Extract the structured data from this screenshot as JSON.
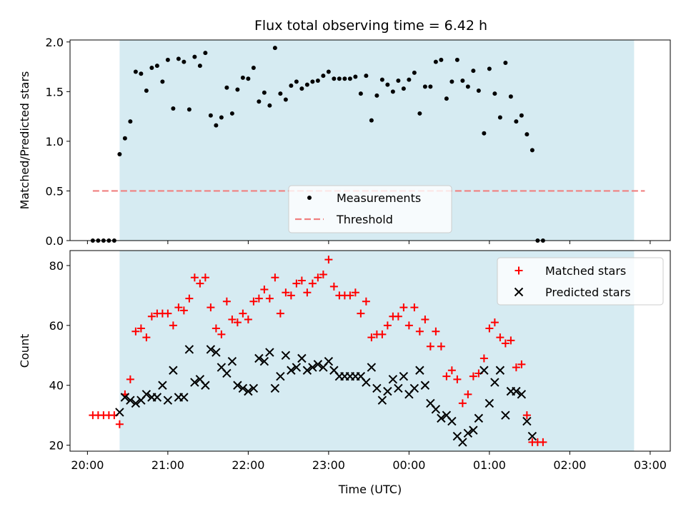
{
  "title": "Flux total observing time = 6.42 h",
  "colors": {
    "shade": "#add8e6",
    "measurement": "#000000",
    "threshold": "#f08080",
    "matched": "#ff0000",
    "predicted": "#000000"
  },
  "chart_data": [
    {
      "type": "scatter",
      "ylabel": "Matched/Predicted stars",
      "xlabel": "",
      "x_ticks": [
        "20:00",
        "21:00",
        "22:00",
        "23:00",
        "00:00",
        "01:00",
        "02:00",
        "03:00"
      ],
      "y_ticks": [
        "0.0",
        "0.5",
        "1.0",
        "1.5",
        "2.0"
      ],
      "xlim": [
        "19:47",
        "03:15"
      ],
      "ylim": [
        0,
        2.02
      ],
      "shaded_span": [
        "20:24",
        "02:48"
      ],
      "threshold": {
        "name": "Threshold",
        "value": 0.5
      },
      "legend": [
        "Measurements",
        "Threshold"
      ],
      "legend_position": "lower center",
      "series": [
        {
          "name": "Measurements",
          "points": [
            [
              "20:04",
              0.0
            ],
            [
              "20:08",
              0.0
            ],
            [
              "20:12",
              0.0
            ],
            [
              "20:16",
              0.0
            ],
            [
              "20:20",
              0.0
            ],
            [
              "20:24",
              0.87
            ],
            [
              "20:28",
              1.03
            ],
            [
              "20:32",
              1.2
            ],
            [
              "20:36",
              1.7
            ],
            [
              "20:40",
              1.68
            ],
            [
              "20:44",
              1.51
            ],
            [
              "20:48",
              1.74
            ],
            [
              "20:52",
              1.76
            ],
            [
              "20:56",
              1.6
            ],
            [
              "21:00",
              1.82
            ],
            [
              "21:04",
              1.33
            ],
            [
              "21:08",
              1.83
            ],
            [
              "21:12",
              1.8
            ],
            [
              "21:16",
              1.32
            ],
            [
              "21:20",
              1.85
            ],
            [
              "21:24",
              1.76
            ],
            [
              "21:28",
              1.89
            ],
            [
              "21:32",
              1.26
            ],
            [
              "21:36",
              1.16
            ],
            [
              "21:40",
              1.24
            ],
            [
              "21:44",
              1.54
            ],
            [
              "21:48",
              1.28
            ],
            [
              "21:52",
              1.52
            ],
            [
              "21:56",
              1.64
            ],
            [
              "22:00",
              1.63
            ],
            [
              "22:04",
              1.74
            ],
            [
              "22:08",
              1.4
            ],
            [
              "22:12",
              1.49
            ],
            [
              "22:16",
              1.36
            ],
            [
              "22:20",
              1.94
            ],
            [
              "22:24",
              1.48
            ],
            [
              "22:28",
              1.42
            ],
            [
              "22:32",
              1.56
            ],
            [
              "22:36",
              1.6
            ],
            [
              "22:40",
              1.53
            ],
            [
              "22:44",
              1.57
            ],
            [
              "22:48",
              1.6
            ],
            [
              "22:52",
              1.61
            ],
            [
              "22:56",
              1.66
            ],
            [
              "23:00",
              1.7
            ],
            [
              "23:04",
              1.63
            ],
            [
              "23:08",
              1.63
            ],
            [
              "23:12",
              1.63
            ],
            [
              "23:16",
              1.63
            ],
            [
              "23:20",
              1.65
            ],
            [
              "23:24",
              1.48
            ],
            [
              "23:28",
              1.66
            ],
            [
              "23:32",
              1.21
            ],
            [
              "23:36",
              1.46
            ],
            [
              "23:40",
              1.62
            ],
            [
              "23:44",
              1.57
            ],
            [
              "23:48",
              1.5
            ],
            [
              "23:52",
              1.61
            ],
            [
              "23:56",
              1.53
            ],
            [
              "00:00",
              1.62
            ],
            [
              "00:04",
              1.69
            ],
            [
              "00:08",
              1.28
            ],
            [
              "00:12",
              1.55
            ],
            [
              "00:16",
              1.55
            ],
            [
              "00:20",
              1.8
            ],
            [
              "00:24",
              1.82
            ],
            [
              "00:28",
              1.43
            ],
            [
              "00:32",
              1.6
            ],
            [
              "00:36",
              1.82
            ],
            [
              "00:40",
              1.61
            ],
            [
              "00:44",
              1.55
            ],
            [
              "00:48",
              1.71
            ],
            [
              "00:52",
              1.51
            ],
            [
              "00:56",
              1.08
            ],
            [
              "01:00",
              1.73
            ],
            [
              "01:04",
              1.48
            ],
            [
              "01:08",
              1.24
            ],
            [
              "01:12",
              1.79
            ],
            [
              "01:16",
              1.45
            ],
            [
              "01:20",
              1.2
            ],
            [
              "01:24",
              1.26
            ],
            [
              "01:28",
              1.07
            ],
            [
              "01:32",
              0.91
            ],
            [
              "01:36",
              0.0
            ],
            [
              "01:40",
              0.0
            ]
          ]
        }
      ]
    },
    {
      "type": "scatter",
      "ylabel": "Count",
      "xlabel": "Time (UTC)",
      "x_ticks": [
        "20:00",
        "21:00",
        "22:00",
        "23:00",
        "00:00",
        "01:00",
        "02:00",
        "03:00"
      ],
      "y_ticks": [
        "20",
        "40",
        "60",
        "80"
      ],
      "xlim": [
        "19:47",
        "03:15"
      ],
      "ylim": [
        18,
        85
      ],
      "shaded_span": [
        "20:24",
        "02:48"
      ],
      "legend": [
        "Matched stars",
        "Predicted stars"
      ],
      "legend_position": "upper right",
      "series": [
        {
          "name": "Matched stars",
          "marker": "+",
          "points": [
            [
              "20:04",
              30
            ],
            [
              "20:08",
              30
            ],
            [
              "20:12",
              30
            ],
            [
              "20:16",
              30
            ],
            [
              "20:20",
              30
            ],
            [
              "20:24",
              27
            ],
            [
              "20:28",
              37
            ],
            [
              "20:32",
              42
            ],
            [
              "20:36",
              58
            ],
            [
              "20:40",
              59
            ],
            [
              "20:44",
              56
            ],
            [
              "20:48",
              63
            ],
            [
              "20:52",
              64
            ],
            [
              "20:56",
              64
            ],
            [
              "21:00",
              64
            ],
            [
              "21:04",
              60
            ],
            [
              "21:08",
              66
            ],
            [
              "21:12",
              65
            ],
            [
              "21:16",
              69
            ],
            [
              "21:20",
              76
            ],
            [
              "21:24",
              74
            ],
            [
              "21:28",
              76
            ],
            [
              "21:32",
              66
            ],
            [
              "21:36",
              59
            ],
            [
              "21:40",
              57
            ],
            [
              "21:44",
              68
            ],
            [
              "21:48",
              62
            ],
            [
              "21:52",
              61
            ],
            [
              "21:56",
              64
            ],
            [
              "22:00",
              62
            ],
            [
              "22:04",
              68
            ],
            [
              "22:08",
              69
            ],
            [
              "22:12",
              72
            ],
            [
              "22:16",
              69
            ],
            [
              "22:20",
              76
            ],
            [
              "22:24",
              64
            ],
            [
              "22:28",
              71
            ],
            [
              "22:32",
              70
            ],
            [
              "22:36",
              74
            ],
            [
              "22:40",
              75
            ],
            [
              "22:44",
              71
            ],
            [
              "22:48",
              74
            ],
            [
              "22:52",
              76
            ],
            [
              "22:56",
              77
            ],
            [
              "23:00",
              82
            ],
            [
              "23:04",
              73
            ],
            [
              "23:08",
              70
            ],
            [
              "23:12",
              70
            ],
            [
              "23:16",
              70
            ],
            [
              "23:20",
              71
            ],
            [
              "23:24",
              64
            ],
            [
              "23:28",
              68
            ],
            [
              "23:32",
              56
            ],
            [
              "23:36",
              57
            ],
            [
              "23:40",
              57
            ],
            [
              "23:44",
              60
            ],
            [
              "23:48",
              63
            ],
            [
              "23:52",
              63
            ],
            [
              "23:56",
              66
            ],
            [
              "00:00",
              60
            ],
            [
              "00:04",
              66
            ],
            [
              "00:08",
              58
            ],
            [
              "00:12",
              62
            ],
            [
              "00:16",
              53
            ],
            [
              "00:20",
              58
            ],
            [
              "00:24",
              53
            ],
            [
              "00:28",
              43
            ],
            [
              "00:32",
              45
            ],
            [
              "00:36",
              42
            ],
            [
              "00:40",
              34
            ],
            [
              "00:44",
              37
            ],
            [
              "00:48",
              43
            ],
            [
              "00:52",
              44
            ],
            [
              "00:56",
              49
            ],
            [
              "01:00",
              59
            ],
            [
              "01:04",
              61
            ],
            [
              "01:08",
              56
            ],
            [
              "01:12",
              54
            ],
            [
              "01:16",
              55
            ],
            [
              "01:20",
              46
            ],
            [
              "01:24",
              47
            ],
            [
              "01:28",
              30
            ],
            [
              "01:32",
              21
            ],
            [
              "01:36",
              21
            ],
            [
              "01:40",
              21
            ]
          ]
        },
        {
          "name": "Predicted stars",
          "marker": "x",
          "points": [
            [
              "20:24",
              31
            ],
            [
              "20:28",
              36
            ],
            [
              "20:32",
              35
            ],
            [
              "20:36",
              34
            ],
            [
              "20:40",
              35
            ],
            [
              "20:44",
              37
            ],
            [
              "20:48",
              36
            ],
            [
              "20:52",
              36
            ],
            [
              "20:56",
              40
            ],
            [
              "21:00",
              35
            ],
            [
              "21:04",
              45
            ],
            [
              "21:08",
              36
            ],
            [
              "21:12",
              36
            ],
            [
              "21:16",
              52
            ],
            [
              "21:20",
              41
            ],
            [
              "21:24",
              42
            ],
            [
              "21:28",
              40
            ],
            [
              "21:32",
              52
            ],
            [
              "21:36",
              51
            ],
            [
              "21:40",
              46
            ],
            [
              "21:44",
              44
            ],
            [
              "21:48",
              48
            ],
            [
              "21:52",
              40
            ],
            [
              "21:56",
              39
            ],
            [
              "22:00",
              38
            ],
            [
              "22:04",
              39
            ],
            [
              "22:08",
              49
            ],
            [
              "22:12",
              48
            ],
            [
              "22:16",
              51
            ],
            [
              "22:20",
              39
            ],
            [
              "22:24",
              43
            ],
            [
              "22:28",
              50
            ],
            [
              "22:32",
              45
            ],
            [
              "22:36",
              46
            ],
            [
              "22:40",
              49
            ],
            [
              "22:44",
              45
            ],
            [
              "22:48",
              46
            ],
            [
              "22:52",
              47
            ],
            [
              "22:56",
              46
            ],
            [
              "23:00",
              48
            ],
            [
              "23:04",
              45
            ],
            [
              "23:08",
              43
            ],
            [
              "23:12",
              43
            ],
            [
              "23:16",
              43
            ],
            [
              "23:20",
              43
            ],
            [
              "23:24",
              43
            ],
            [
              "23:28",
              41
            ],
            [
              "23:32",
              46
            ],
            [
              "23:36",
              39
            ],
            [
              "23:40",
              35
            ],
            [
              "23:44",
              38
            ],
            [
              "23:48",
              42
            ],
            [
              "23:52",
              39
            ],
            [
              "23:56",
              43
            ],
            [
              "00:00",
              37
            ],
            [
              "00:04",
              39
            ],
            [
              "00:08",
              45
            ],
            [
              "00:12",
              40
            ],
            [
              "00:16",
              34
            ],
            [
              "00:20",
              32
            ],
            [
              "00:24",
              29
            ],
            [
              "00:28",
              30
            ],
            [
              "00:32",
              28
            ],
            [
              "00:36",
              23
            ],
            [
              "00:40",
              21
            ],
            [
              "00:44",
              24
            ],
            [
              "00:48",
              25
            ],
            [
              "00:52",
              29
            ],
            [
              "00:56",
              45
            ],
            [
              "01:00",
              34
            ],
            [
              "01:04",
              41
            ],
            [
              "01:08",
              45
            ],
            [
              "01:12",
              30
            ],
            [
              "01:16",
              38
            ],
            [
              "01:20",
              38
            ],
            [
              "01:24",
              37
            ],
            [
              "01:28",
              28
            ],
            [
              "01:32",
              23
            ]
          ]
        }
      ]
    }
  ]
}
